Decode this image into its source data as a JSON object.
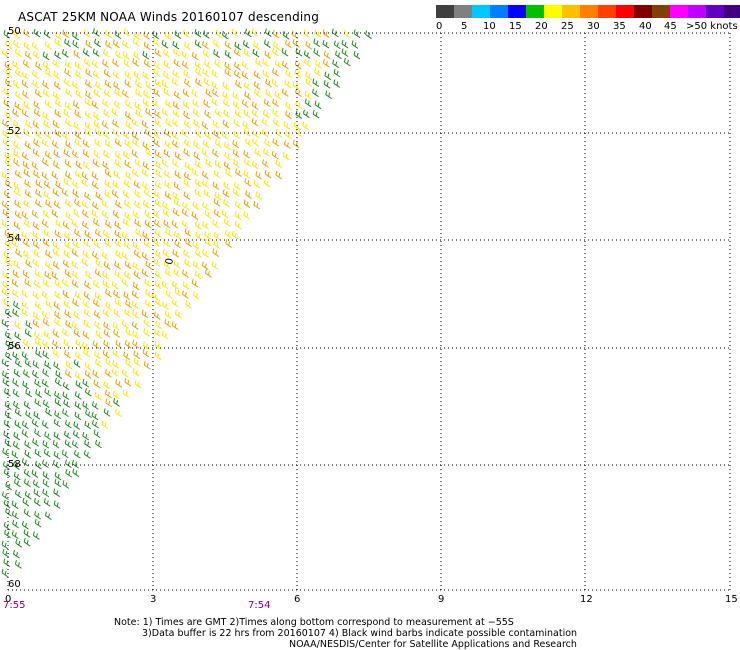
{
  "title": "ASCAT 25KM NOAA Winds 20160107 descending",
  "scale": {
    "colors": [
      "#404040",
      "#808080",
      "#00c8ff",
      "#0080ff",
      "#0000ff",
      "#00c000",
      "#ffff00",
      "#ffc000",
      "#ff8000",
      "#ff4000",
      "#ff0000",
      "#800000",
      "#804000",
      "#ff00ff",
      "#c000ff",
      "#6000c0",
      "#400080"
    ],
    "labels": [
      "0",
      "5",
      "10",
      "15",
      "20",
      "25",
      "30",
      "35",
      "40",
      "45",
      ">50 knots"
    ]
  },
  "map": {
    "y_labels": [
      "50",
      "52",
      "54",
      "56",
      "58",
      "60"
    ],
    "x_labels": [
      "0",
      "3",
      "6",
      "9",
      "12",
      "15"
    ],
    "time_labels": [
      "7:55",
      "7:54"
    ],
    "marker": "0",
    "wind_colors": {
      "low": "#228b22",
      "mid": "#ffe600",
      "high": "#f0a000"
    }
  },
  "notes": [
    "Note: 1) Times are GMT 2)Times along bottom correspond to measurement at −55S",
    "3)Data buffer is 22 hrs from 20160107 4) Black wind barbs indicate possible contamination",
    "NOAA/NESDIS/Center for Satellite Applications and Research"
  ]
}
